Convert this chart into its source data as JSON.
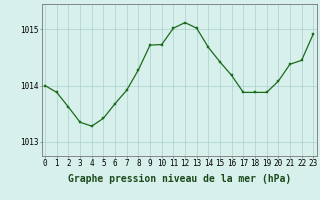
{
  "x": [
    0,
    1,
    2,
    3,
    4,
    5,
    6,
    7,
    8,
    9,
    10,
    11,
    12,
    13,
    14,
    15,
    16,
    17,
    18,
    19,
    20,
    21,
    22,
    23
  ],
  "y": [
    1014.0,
    1013.88,
    1013.62,
    1013.35,
    1013.28,
    1013.42,
    1013.68,
    1013.92,
    1014.28,
    1014.72,
    1014.73,
    1015.02,
    1015.12,
    1015.02,
    1014.68,
    1014.42,
    1014.18,
    1013.88,
    1013.88,
    1013.88,
    1014.08,
    1014.38,
    1014.45,
    1014.92
  ],
  "line_color": "#1a6b1a",
  "marker_color": "#1a6b1a",
  "bg_color": "#d8f0ec",
  "grid_color": "#aacfcf",
  "xlabel": "Graphe pression niveau de la mer (hPa)",
  "xlabel_fontsize": 7,
  "ylim": [
    1012.75,
    1015.45
  ],
  "yticks": [
    1013,
    1014,
    1015
  ],
  "xticks": [
    0,
    1,
    2,
    3,
    4,
    5,
    6,
    7,
    8,
    9,
    10,
    11,
    12,
    13,
    14,
    15,
    16,
    17,
    18,
    19,
    20,
    21,
    22,
    23
  ],
  "tick_fontsize": 5.5,
  "border_color": "#777777"
}
